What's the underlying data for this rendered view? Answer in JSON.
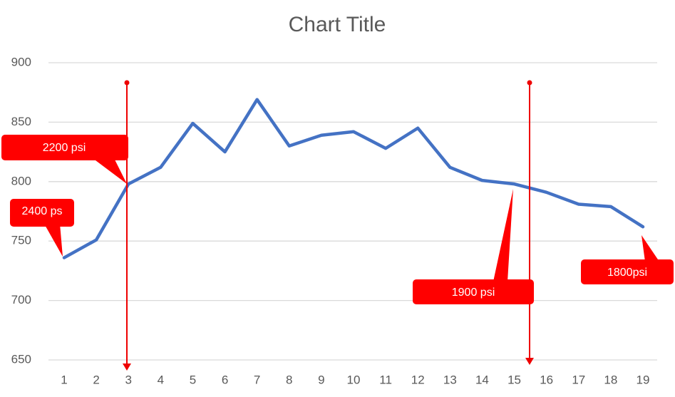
{
  "chart_data": {
    "type": "line",
    "title": "Chart Title",
    "categories": [
      "1",
      "2",
      "3",
      "4",
      "5",
      "6",
      "7",
      "8",
      "9",
      "10",
      "11",
      "12",
      "13",
      "14",
      "15",
      "16",
      "17",
      "18",
      "19"
    ],
    "series": [
      {
        "color": "#4472c4",
        "values": [
          736,
          751,
          798,
          812,
          849,
          825,
          869,
          830,
          839,
          842,
          828,
          845,
          812,
          801,
          798,
          791,
          781,
          779,
          762
        ]
      }
    ],
    "ylim": [
      650,
      900
    ],
    "yticks": [
      650,
      700,
      750,
      800,
      850,
      900
    ],
    "grid": true,
    "annotations": [
      "2200 psi",
      "2400 ps",
      "1900 psi",
      "1800psi"
    ]
  }
}
